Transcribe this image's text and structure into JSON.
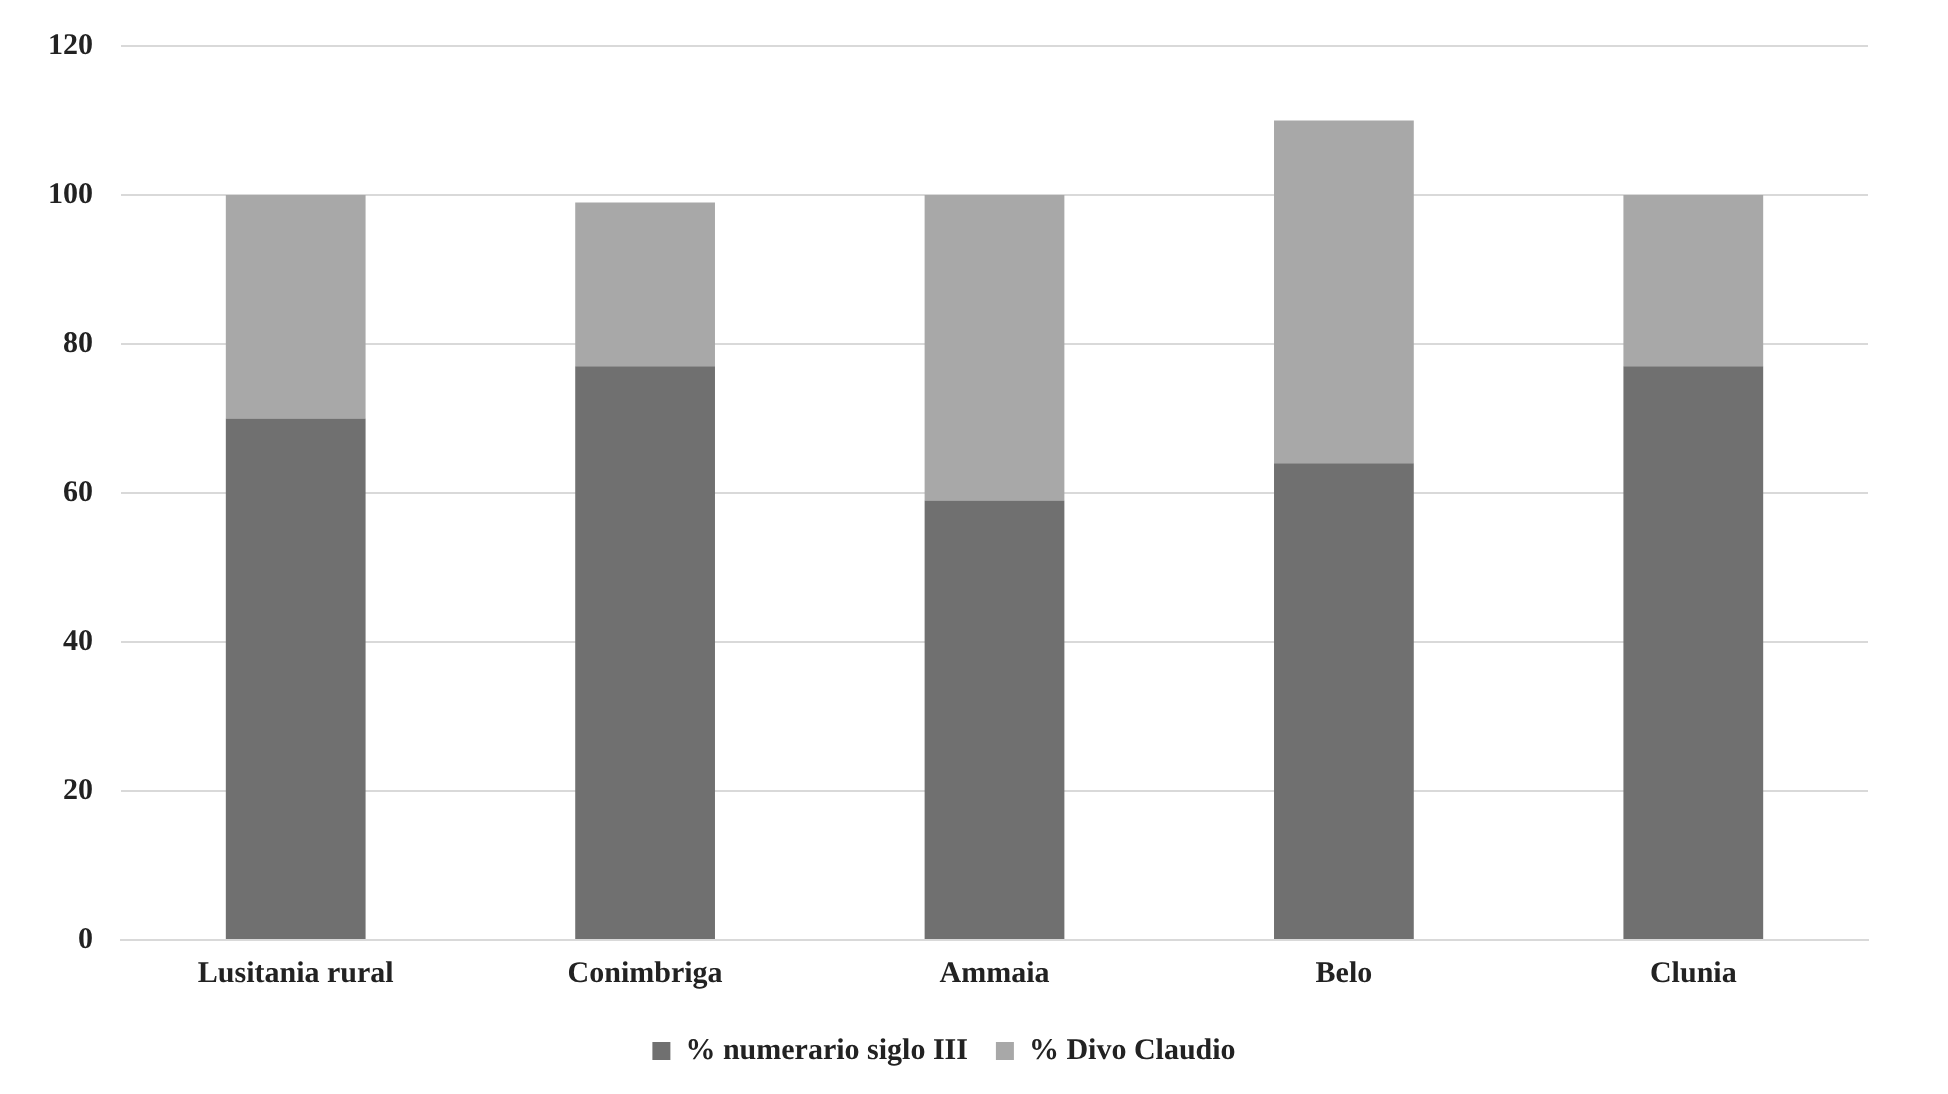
{
  "chart_data": {
    "type": "bar",
    "stacked": true,
    "categories": [
      "Lusitania rural",
      "Conimbriga",
      "Ammaia",
      "Belo",
      "Clunia"
    ],
    "series": [
      {
        "name": "% numerario siglo III",
        "color": "#707070",
        "values": [
          70,
          77,
          59,
          64,
          77
        ]
      },
      {
        "name": "% Divo Claudio",
        "color": "#a8a8a8",
        "values": [
          30,
          22,
          41,
          46,
          23
        ]
      }
    ],
    "ylim": [
      0,
      120
    ],
    "yticks": [
      0,
      20,
      40,
      60,
      80,
      100,
      120
    ],
    "grid": "y",
    "legend": "bottom"
  }
}
